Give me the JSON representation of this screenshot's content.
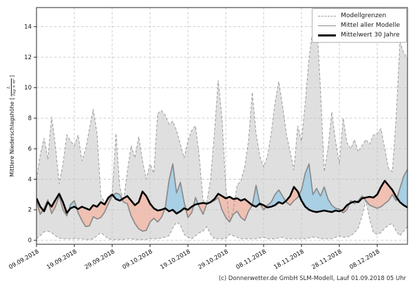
{
  "chart_data": {
    "type": "line",
    "title": "",
    "ylabel": {
      "prefix": "Mittlere Niederschlagshöhe [",
      "frac_num": "L",
      "frac_den": "Tag × m²",
      "suffix": "]"
    },
    "x_unit": "days since first tick (daily values)",
    "x_tick_labels": [
      "09.09.2018",
      "19.09.2018",
      "29.09.2018",
      "09.10.2018",
      "19.10.2018",
      "29.10.2018",
      "08.11.2018",
      "18.11.2018",
      "28.11.2018",
      "08.12.2018"
    ],
    "x_tick_days": [
      0,
      10,
      20,
      30,
      40,
      50,
      60,
      70,
      80,
      90
    ],
    "x_range_days": [
      0,
      98
    ],
    "y_ticks": [
      0,
      2,
      4,
      6,
      8,
      10,
      12,
      14
    ],
    "ylim": [
      -0.26,
      15.25
    ],
    "grid": true,
    "legend_position": "upper right",
    "legend": [
      {
        "label": "Modellgrenzen",
        "style": "dashed-gray"
      },
      {
        "label": "Mittel aller Modelle",
        "style": "solid-gray"
      },
      {
        "label": "Mittelwert 30 Jahre",
        "style": "solid-black-thick"
      }
    ],
    "series": [
      {
        "name": "Modellgrenzen (oben)",
        "role": "band_upper",
        "values": [
          4.0,
          5.6,
          6.7,
          5.3,
          8.1,
          6.2,
          3.7,
          5.0,
          6.9,
          6.5,
          6.2,
          6.9,
          5.2,
          6.0,
          7.3,
          8.6,
          7.0,
          2.9,
          2.5,
          2.6,
          3.0,
          7.0,
          3.5,
          2.6,
          4.5,
          6.2,
          5.4,
          6.8,
          5.2,
          4.0,
          5.0,
          4.4,
          8.3,
          8.5,
          8.2,
          7.6,
          7.8,
          7.2,
          6.3,
          5.4,
          6.5,
          7.2,
          7.5,
          5.5,
          2.6,
          2.5,
          4.0,
          7.0,
          10.5,
          8.0,
          3.5,
          1.2,
          2.0,
          3.6,
          3.9,
          4.8,
          6.5,
          9.7,
          7.0,
          5.5,
          4.8,
          5.5,
          7.0,
          9.0,
          10.4,
          8.8,
          7.0,
          5.8,
          4.6,
          7.5,
          6.5,
          9.0,
          12.0,
          13.8,
          14.4,
          10.0,
          4.5,
          6.0,
          8.4,
          6.5,
          5.0,
          8.0,
          6.4,
          6.0,
          6.6,
          5.8,
          6.2,
          6.6,
          6.3,
          6.9,
          7.0,
          7.3,
          6.0,
          4.7,
          4.5,
          8.0,
          13.0,
          12.3,
          11.9
        ]
      },
      {
        "name": "Modellgrenzen (unten)",
        "role": "band_lower",
        "values": [
          0.1,
          0.3,
          0.55,
          0.6,
          0.5,
          0.3,
          0.15,
          0.1,
          0.1,
          0.1,
          0.1,
          0.1,
          0.1,
          0.05,
          0.05,
          0.1,
          0.3,
          0.5,
          0.3,
          0.1,
          0.05,
          0.05,
          0.05,
          0.05,
          0.1,
          0.1,
          0.05,
          0.05,
          0.05,
          0.05,
          0.1,
          0.1,
          0.1,
          0.15,
          0.2,
          0.3,
          0.8,
          1.2,
          1.0,
          0.4,
          0.2,
          0.1,
          0.3,
          0.5,
          0.6,
          0.9,
          0.4,
          0.1,
          0.1,
          0.1,
          0.1,
          0.4,
          0.3,
          0.2,
          0.1,
          0.1,
          0.1,
          0.1,
          0.1,
          0.15,
          0.2,
          0.1,
          0.1,
          0.1,
          0.15,
          0.2,
          0.1,
          0.1,
          0.1,
          0.1,
          0.1,
          0.1,
          0.15,
          0.2,
          0.2,
          0.1,
          0.1,
          0.1,
          0.1,
          0.2,
          0.3,
          0.2,
          0.2,
          0.3,
          0.5,
          0.8,
          1.6,
          2.6,
          1.4,
          0.5,
          0.4,
          0.5,
          0.8,
          1.0,
          1.1,
          0.6,
          0.3,
          0.6,
          0.9
        ]
      },
      {
        "name": "Mittel aller Modelle",
        "role": "model_mean",
        "values": [
          2.55,
          1.7,
          2.1,
          2.65,
          1.75,
          2.2,
          2.9,
          2.0,
          1.6,
          2.35,
          2.6,
          1.8,
          1.3,
          0.9,
          0.95,
          1.55,
          1.4,
          1.5,
          1.85,
          2.4,
          2.9,
          3.1,
          3.0,
          2.5,
          2.4,
          1.6,
          1.1,
          0.75,
          0.6,
          0.65,
          1.2,
          1.45,
          1.2,
          1.5,
          2.1,
          3.9,
          5.0,
          3.1,
          3.8,
          2.5,
          1.5,
          1.8,
          2.8,
          2.2,
          1.7,
          2.4,
          2.5,
          2.6,
          2.8,
          2.0,
          1.5,
          1.2,
          1.7,
          1.9,
          1.5,
          1.3,
          1.9,
          2.3,
          3.6,
          2.4,
          2.0,
          2.3,
          2.5,
          3.0,
          3.3,
          2.9,
          2.5,
          2.3,
          2.6,
          2.8,
          3.3,
          4.4,
          5.0,
          3.0,
          3.4,
          2.9,
          3.5,
          2.7,
          2.3,
          2.1,
          2.05,
          1.8,
          2.0,
          2.6,
          2.4,
          2.6,
          2.9,
          2.6,
          2.3,
          2.2,
          2.1,
          2.2,
          2.4,
          2.6,
          3.0,
          2.6,
          3.4,
          4.2,
          4.65
        ]
      },
      {
        "name": "Mittelwert 30 Jahre",
        "role": "mean_30y",
        "values": [
          2.75,
          2.2,
          1.9,
          2.5,
          2.2,
          2.65,
          3.05,
          2.5,
          1.8,
          2.1,
          2.2,
          2.05,
          2.2,
          2.1,
          2.0,
          2.3,
          2.2,
          2.5,
          2.35,
          2.8,
          3.0,
          2.7,
          2.6,
          2.75,
          2.9,
          2.6,
          2.3,
          2.5,
          3.2,
          2.9,
          2.4,
          2.1,
          1.95,
          2.0,
          2.1,
          1.9,
          2.0,
          1.75,
          1.9,
          2.1,
          2.0,
          2.2,
          2.35,
          2.4,
          2.45,
          2.4,
          2.5,
          2.7,
          3.05,
          2.9,
          2.75,
          2.85,
          2.7,
          2.75,
          2.6,
          2.7,
          2.5,
          2.3,
          2.2,
          2.4,
          2.3,
          2.15,
          2.2,
          2.3,
          2.5,
          2.4,
          2.6,
          2.9,
          3.5,
          3.2,
          2.6,
          2.2,
          2.0,
          1.9,
          1.85,
          1.9,
          1.95,
          1.9,
          1.85,
          1.95,
          1.9,
          2.0,
          2.3,
          2.45,
          2.55,
          2.5,
          2.75,
          2.8,
          2.85,
          2.8,
          3.0,
          3.5,
          3.9,
          3.6,
          3.3,
          2.85,
          2.5,
          2.3,
          2.15
        ]
      }
    ],
    "colors": {
      "band_fill": "#dcdcdc",
      "band_edge": "#9a9a9a",
      "model_mean_line": "#8a8a8a",
      "mean_30y_line": "#000000",
      "above_normal_fill": "#a8cfe4",
      "below_normal_fill": "#f0c0b2",
      "grid": "#c6c6c6",
      "spine": "#262626"
    },
    "footer": "(c) Donnerwetter.de GmbH SLM-Modell, Lauf 01.09.2018 05 Uhr"
  }
}
